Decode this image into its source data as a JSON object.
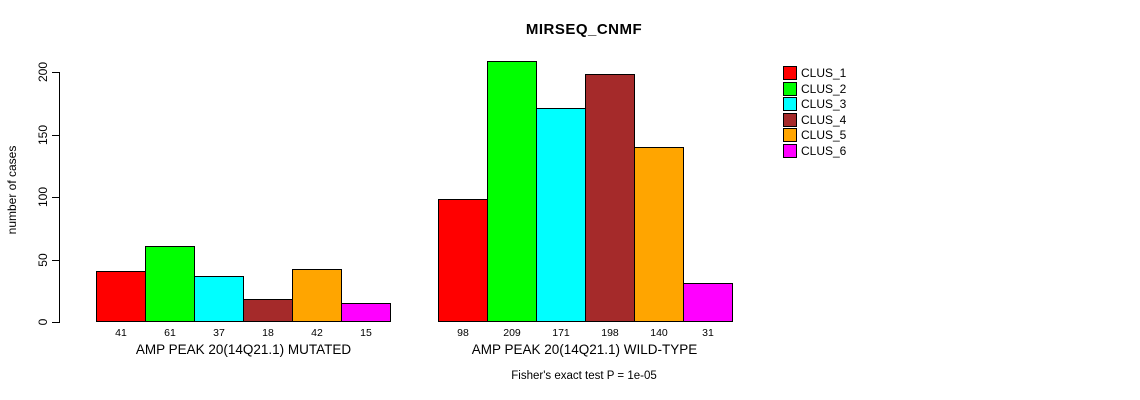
{
  "title": "MIRSEQ_CNMF",
  "footer": "Fisher's exact test P = 1e-05",
  "colors": {
    "background": "#FFFFFF",
    "axis": "#000000",
    "text": "#000000"
  },
  "legend": {
    "position": "right",
    "items": [
      {
        "label": "CLUS_1",
        "color": "#FF0000"
      },
      {
        "label": "CLUS_2",
        "color": "#00FF00"
      },
      {
        "label": "CLUS_3",
        "color": "#00FFFF"
      },
      {
        "label": "CLUS_4",
        "color": "#A52A2A"
      },
      {
        "label": "CLUS_5",
        "color": "#FFA500"
      },
      {
        "label": "CLUS_6",
        "color": "#FF00FF"
      }
    ]
  },
  "chart_data": {
    "type": "bar",
    "title": "MIRSEQ_CNMF",
    "xlabel": "",
    "ylabel": "number of cases",
    "ylim": [
      0,
      210
    ],
    "yticks": [
      0,
      50,
      100,
      150,
      200
    ],
    "grid": false,
    "legend_position": "right",
    "annotation": "Fisher's exact test P = 1e-05",
    "series_labels": [
      "CLUS_1",
      "CLUS_2",
      "CLUS_3",
      "CLUS_4",
      "CLUS_5",
      "CLUS_6"
    ],
    "series_colors": [
      "#FF0000",
      "#00FF00",
      "#00FFFF",
      "#A52A2A",
      "#FFA500",
      "#FF00FF"
    ],
    "groups": [
      {
        "label": "AMP PEAK 20(14Q21.1) MUTATED",
        "values": [
          41,
          61,
          37,
          18,
          42,
          15
        ]
      },
      {
        "label": "AMP PEAK 20(14Q21.1) WILD-TYPE",
        "values": [
          98,
          209,
          171,
          198,
          140,
          31
        ]
      }
    ],
    "bar_value_labels_shown": true
  }
}
